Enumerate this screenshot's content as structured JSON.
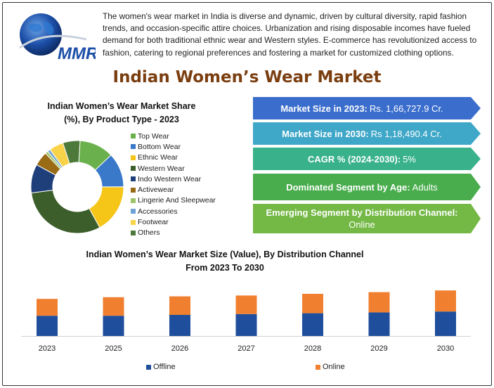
{
  "logo": {
    "text": "MMR"
  },
  "intro_text": "The women's wear market in India is diverse and dynamic, driven by cultural diversity, rapid fashion trends, and occasion-specific attire choices. Urbanization and rising disposable incomes have fueled demand for both traditional ethnic wear and Western styles. E-commerce has revolutionized access to fashion, catering to regional preferences and fostering a market for customized clothing options.",
  "main_title": "Indian Women’s Wear Market",
  "kpis": {
    "market_2023": {
      "label": "Market Size in 2023:",
      "value": "Rs. 1,66,727.9 Cr.",
      "color": "#3b6ecc"
    },
    "market_2030": {
      "label": "Market Size in 2030:",
      "value": "Rs 1,18,490.4 Cr.",
      "color": "#3fa7c8"
    },
    "cagr": {
      "label": "CAGR % (2024-2030):",
      "value": "5%",
      "color": "#39b28c"
    },
    "dominated": {
      "label": "Dominated Segment by Age:",
      "value": "Adults",
      "color": "#49ad4d"
    },
    "emerging": {
      "label": "Emerging Segment by Distribution Channel:",
      "value": "Online",
      "color": "#74b846"
    }
  },
  "chart_data": [
    {
      "type": "pie",
      "title_line1": "Indian Women’s Wear Market Share",
      "title_line2": "(%), By Product Type - 2023",
      "donut": true,
      "legend_placement": "right",
      "slices": [
        {
          "name": "Top Wear",
          "value": 12,
          "color": "#6ab04c"
        },
        {
          "name": "Bottom Wear",
          "value": 12,
          "color": "#3a78c9"
        },
        {
          "name": "Ethnic Wear",
          "value": 17,
          "color": "#f5c518"
        },
        {
          "name": "Western Wear",
          "value": 31,
          "color": "#3b5e2b"
        },
        {
          "name": "Indo Western Wear",
          "value": 10,
          "color": "#1f3f7a"
        },
        {
          "name": "Activewear",
          "value": 5,
          "color": "#9a6b15"
        },
        {
          "name": "Lingerie And Sleepwear",
          "value": 1,
          "color": "#9ec46a"
        },
        {
          "name": "Accessories",
          "value": 1,
          "color": "#6fa1d6"
        },
        {
          "name": "Footwear",
          "value": 5,
          "color": "#f8d34a"
        },
        {
          "name": "Others",
          "value": 6,
          "color": "#4d7a3a"
        }
      ]
    },
    {
      "type": "bar",
      "stacked": true,
      "title_line1": "Indian Women’s Wear Market Size (Value), By Distribution Channel",
      "title_line2": "From 2023 To 2030",
      "categories": [
        "2023",
        "2025",
        "2026",
        "2027",
        "2028",
        "2029",
        "2030"
      ],
      "series": [
        {
          "name": "Offline",
          "color": "#1f4e9c",
          "values": [
            24,
            24,
            25,
            26,
            27,
            28,
            29
          ]
        },
        {
          "name": "Online",
          "color": "#f08030",
          "values": [
            20,
            22,
            22,
            22,
            23,
            24,
            25
          ]
        }
      ],
      "ylim": [
        0,
        60
      ],
      "legend_placement": "bottom",
      "grid": false
    }
  ]
}
